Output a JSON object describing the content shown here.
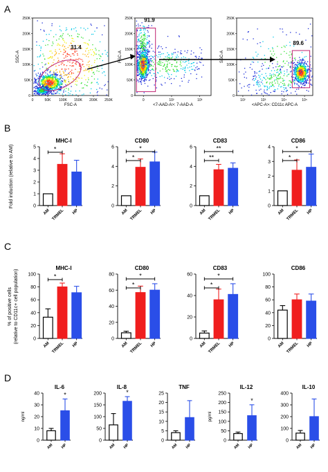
{
  "panel_letters": {
    "A": "A",
    "B": "B",
    "C": "C",
    "D": "D"
  },
  "flow": {
    "plots": [
      {
        "y_label": "SSC-A",
        "x_label": "FSC-A",
        "gate_value": "31.4",
        "y_ticks": [
          "0",
          "50K",
          "100K",
          "150K",
          "200K",
          "250K"
        ],
        "x_ticks": [
          "0",
          "50K",
          "100K",
          "150K",
          "200K",
          "250K"
        ]
      },
      {
        "y_label": "FSC-A",
        "x_label": "<7-AAD-A>: 7-AAD-A",
        "gate_value": "91.9",
        "y_ticks": [
          "0",
          "50K",
          "100K",
          "150K",
          "200K",
          "250K"
        ],
        "x_ticks": [
          "0",
          "10²",
          "10³"
        ]
      },
      {
        "y_label": "SSC-A",
        "x_label": "<APC-A>: CD11c APC-A",
        "gate_value": "89.6",
        "y_ticks": [
          "0",
          "50K",
          "100K",
          "150K",
          "200K",
          "250K"
        ],
        "x_ticks": [
          "10²",
          "10³",
          "10⁴",
          "10⁵"
        ]
      }
    ]
  },
  "chart_data": [
    {
      "type": "bar",
      "panel": "B",
      "title": "MHC-I",
      "ylabel": "Fold induction (relative to AM)",
      "categories": [
        "AM",
        "TRMEL",
        "HP"
      ],
      "values": [
        1.0,
        3.5,
        2.85
      ],
      "errors": [
        0,
        0.9,
        1.0
      ],
      "ylim": [
        0,
        5
      ],
      "yticks": [
        "0",
        "1",
        "2",
        "3",
        "4",
        "5"
      ],
      "colors": [
        "#ffffff",
        "#f01e1e",
        "#2a4ee8"
      ],
      "significance": [
        {
          "from": 0,
          "to": 1,
          "label": "*"
        }
      ]
    },
    {
      "type": "bar",
      "panel": "B",
      "title": "CD80",
      "categories": [
        "AM",
        "TRMEL",
        "HP"
      ],
      "values": [
        1.0,
        3.9,
        4.45
      ],
      "errors": [
        0,
        0.85,
        1.0
      ],
      "ylim": [
        0,
        6
      ],
      "yticks": [
        "0",
        "2",
        "4",
        "6"
      ],
      "colors": [
        "#ffffff",
        "#f01e1e",
        "#2a4ee8"
      ],
      "significance": [
        {
          "from": 0,
          "to": 1,
          "label": "*"
        },
        {
          "from": 0,
          "to": 2,
          "label": "*"
        }
      ]
    },
    {
      "type": "bar",
      "panel": "B",
      "title": "CD83",
      "categories": [
        "AM",
        "TRMEL",
        "HP"
      ],
      "values": [
        1.0,
        3.65,
        3.8
      ],
      "errors": [
        0,
        0.55,
        0.55
      ],
      "ylim": [
        0,
        6
      ],
      "yticks": [
        "0",
        "2",
        "4",
        "6"
      ],
      "colors": [
        "#ffffff",
        "#f01e1e",
        "#2a4ee8"
      ],
      "significance": [
        {
          "from": 0,
          "to": 1,
          "label": "**"
        },
        {
          "from": 0,
          "to": 2,
          "label": "**"
        }
      ]
    },
    {
      "type": "bar",
      "panel": "B",
      "title": "CD86",
      "categories": [
        "AM",
        "TRMEL",
        "HP"
      ],
      "values": [
        1.0,
        2.4,
        2.6
      ],
      "errors": [
        0,
        0.7,
        0.9
      ],
      "ylim": [
        0,
        4
      ],
      "yticks": [
        "0",
        "1",
        "2",
        "3",
        "4"
      ],
      "colors": [
        "#ffffff",
        "#f01e1e",
        "#2a4ee8"
      ],
      "significance": [
        {
          "from": 0,
          "to": 1,
          "label": "*"
        },
        {
          "from": 0,
          "to": 2,
          "label": "*"
        }
      ]
    },
    {
      "type": "bar",
      "panel": "C",
      "title": "MHC-I",
      "ylabel": "% of positive cells (relative to CD11c+ cell population)",
      "categories": [
        "AM",
        "TRMEL",
        "HP"
      ],
      "values": [
        33,
        80,
        71
      ],
      "errors": [
        13,
        6,
        10
      ],
      "ylim": [
        0,
        100
      ],
      "yticks": [
        "0",
        "20",
        "40",
        "60",
        "80",
        "100"
      ],
      "colors": [
        "#ffffff",
        "#f01e1e",
        "#2a4ee8"
      ],
      "significance": [
        {
          "from": 0,
          "to": 1,
          "label": "*"
        }
      ]
    },
    {
      "type": "bar",
      "panel": "C",
      "title": "CD80",
      "categories": [
        "AM",
        "TRMEL",
        "HP"
      ],
      "values": [
        7,
        57,
        60
      ],
      "errors": [
        2,
        8,
        8
      ],
      "ylim": [
        0,
        80
      ],
      "yticks": [
        "0",
        "20",
        "40",
        "60",
        "80"
      ],
      "colors": [
        "#ffffff",
        "#f01e1e",
        "#2a4ee8"
      ],
      "significance": [
        {
          "from": 0,
          "to": 1,
          "label": "*"
        },
        {
          "from": 0,
          "to": 2,
          "label": "*"
        }
      ]
    },
    {
      "type": "bar",
      "panel": "C",
      "title": "CD83",
      "categories": [
        "AM",
        "TRMEL",
        "HP"
      ],
      "values": [
        5,
        36,
        41
      ],
      "errors": [
        2,
        10,
        10
      ],
      "ylim": [
        0,
        60
      ],
      "yticks": [
        "0",
        "20",
        "40",
        "60"
      ],
      "colors": [
        "#ffffff",
        "#f01e1e",
        "#2a4ee8"
      ],
      "significance": [
        {
          "from": 0,
          "to": 1,
          "label": "*"
        },
        {
          "from": 0,
          "to": 2,
          "label": "*"
        }
      ]
    },
    {
      "type": "bar",
      "panel": "C",
      "title": "CD86",
      "categories": [
        "AM",
        "TRMEL",
        "HP"
      ],
      "values": [
        44,
        60,
        58
      ],
      "errors": [
        7,
        9,
        11
      ],
      "ylim": [
        0,
        100
      ],
      "yticks": [
        "0",
        "20",
        "40",
        "60",
        "80",
        "100"
      ],
      "colors": [
        "#ffffff",
        "#f01e1e",
        "#2a4ee8"
      ],
      "significance": []
    },
    {
      "type": "bar",
      "panel": "D",
      "title": "IL-6",
      "ylabel": "ng/ml",
      "categories": [
        "AM",
        "HP"
      ],
      "values": [
        8,
        25
      ],
      "errors": [
        2,
        10
      ],
      "ylim": [
        0,
        40
      ],
      "yticks": [
        "0",
        "10",
        "20",
        "30",
        "40"
      ],
      "colors": [
        "#ffffff",
        "#2a4ee8"
      ],
      "stars": [
        "",
        "*"
      ]
    },
    {
      "type": "bar",
      "panel": "D",
      "title": "IL-8",
      "categories": [
        "AM",
        "HP"
      ],
      "values": [
        65,
        165
      ],
      "errors": [
        48,
        20
      ],
      "ylim": [
        0,
        200
      ],
      "yticks": [
        "0",
        "50",
        "100",
        "150",
        "200"
      ],
      "colors": [
        "#ffffff",
        "#2a4ee8"
      ],
      "stars": [
        "",
        "*"
      ]
    },
    {
      "type": "bar",
      "panel": "D",
      "title": "TNF",
      "categories": [
        "AM",
        "HP"
      ],
      "values": [
        4,
        12
      ],
      "errors": [
        1,
        9
      ],
      "ylim": [
        0,
        25
      ],
      "yticks": [
        "0",
        "5",
        "10",
        "15",
        "20",
        "25"
      ],
      "colors": [
        "#ffffff",
        "#2a4ee8"
      ],
      "stars": [
        "",
        ""
      ]
    },
    {
      "type": "bar",
      "panel": "D",
      "title": "IL-12",
      "ylabel": "pg/ml",
      "categories": [
        "AM",
        "HP"
      ],
      "values": [
        35,
        130
      ],
      "errors": [
        8,
        58
      ],
      "ylim": [
        0,
        250
      ],
      "yticks": [
        "0",
        "50",
        "100",
        "150",
        "200",
        "250"
      ],
      "colors": [
        "#ffffff",
        "#2a4ee8"
      ],
      "stars": [
        "",
        "*"
      ]
    },
    {
      "type": "bar",
      "panel": "D",
      "title": "IL-10",
      "categories": [
        "AM",
        "HP"
      ],
      "values": [
        60,
        200
      ],
      "errors": [
        22,
        150
      ],
      "ylim": [
        0,
        400
      ],
      "yticks": [
        "0",
        "100",
        "200",
        "300",
        "400"
      ],
      "colors": [
        "#ffffff",
        "#2a4ee8"
      ],
      "stars": [
        "",
        ""
      ]
    }
  ]
}
